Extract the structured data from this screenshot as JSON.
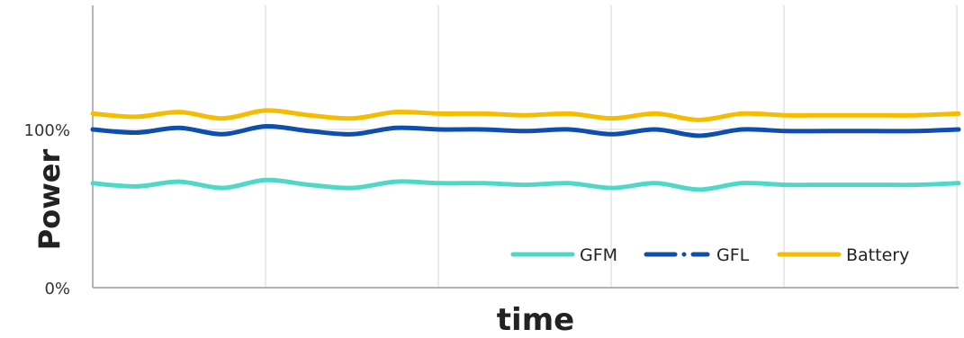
{
  "chart_data": {
    "type": "line",
    "title": "",
    "xlabel": "time",
    "ylabel": "Power",
    "y_ticks": [
      "0%",
      "100%"
    ],
    "ylim": [
      0,
      100
    ],
    "x": [
      0,
      0.5,
      1,
      1.5,
      2,
      2.5,
      3,
      3.5,
      4,
      4.5,
      5,
      5.5,
      6,
      6.5,
      7,
      7.5,
      8,
      8.5,
      9,
      9.5,
      10
    ],
    "grid": {
      "vertical": true,
      "horizontal": true
    },
    "legend_position": "bottom-right",
    "series": [
      {
        "name": "GFM",
        "color": "#4fd8c8",
        "dash": "solid",
        "values": [
          66,
          64,
          67,
          63,
          68,
          65,
          63,
          67,
          66,
          66,
          65,
          66,
          63,
          66,
          62,
          66,
          65,
          65,
          65,
          65,
          66
        ]
      },
      {
        "name": "GFL",
        "color": "#0e4ead",
        "dash": "long-dash",
        "values": [
          100,
          98,
          101,
          97,
          102,
          99,
          97,
          101,
          100,
          100,
          99,
          100,
          97,
          100,
          96,
          100,
          99,
          99,
          99,
          99,
          100
        ]
      },
      {
        "name": "Battery",
        "color": "#f5bc00",
        "dash": "solid",
        "values": [
          110,
          108,
          111,
          107,
          112,
          109,
          107,
          111,
          110,
          110,
          109,
          110,
          107,
          110,
          106,
          110,
          109,
          109,
          109,
          109,
          110
        ]
      }
    ]
  }
}
